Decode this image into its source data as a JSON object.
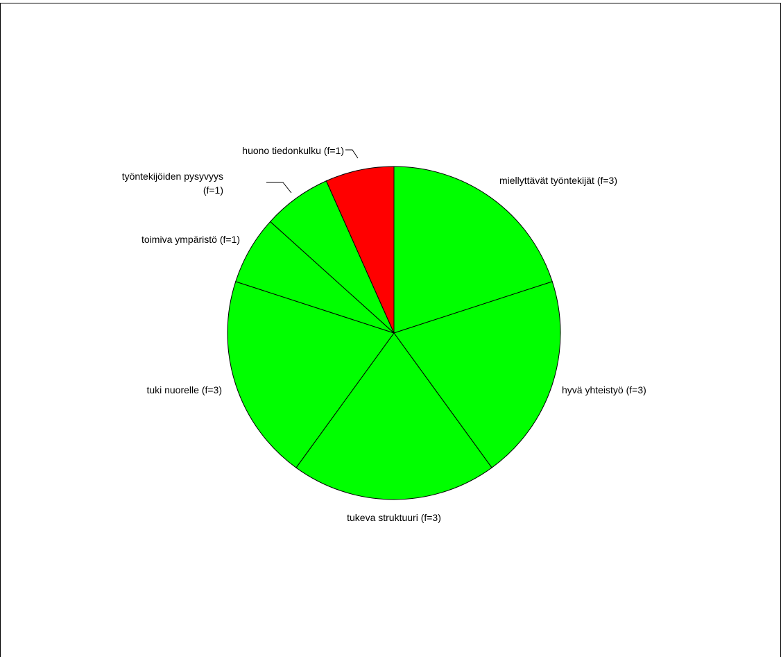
{
  "chart_data": {
    "type": "pie",
    "title": "",
    "start_angle_deg": 0,
    "direction": "clockwise",
    "legend": "none",
    "slices": [
      {
        "label": "miellyttävät työntekijät (f=3)",
        "value": 3,
        "color": "#00ff00"
      },
      {
        "label": "hyvä yhteistyö (f=3)",
        "value": 3,
        "color": "#00ff00"
      },
      {
        "label": "tukeva struktuuri (f=3)",
        "value": 3,
        "color": "#00ff00"
      },
      {
        "label": "tuki nuorelle (f=3)",
        "value": 3,
        "color": "#00ff00"
      },
      {
        "label": "toimiva ympäristö (f=1)",
        "value": 1,
        "color": "#00ff00"
      },
      {
        "label": [
          "työntekijöiden pysyvyys",
          "(f=1)"
        ],
        "value": 1,
        "color": "#00ff00"
      },
      {
        "label": "huono tiedonkulku (f=1)",
        "value": 1,
        "color": "#ff0000"
      }
    ]
  }
}
